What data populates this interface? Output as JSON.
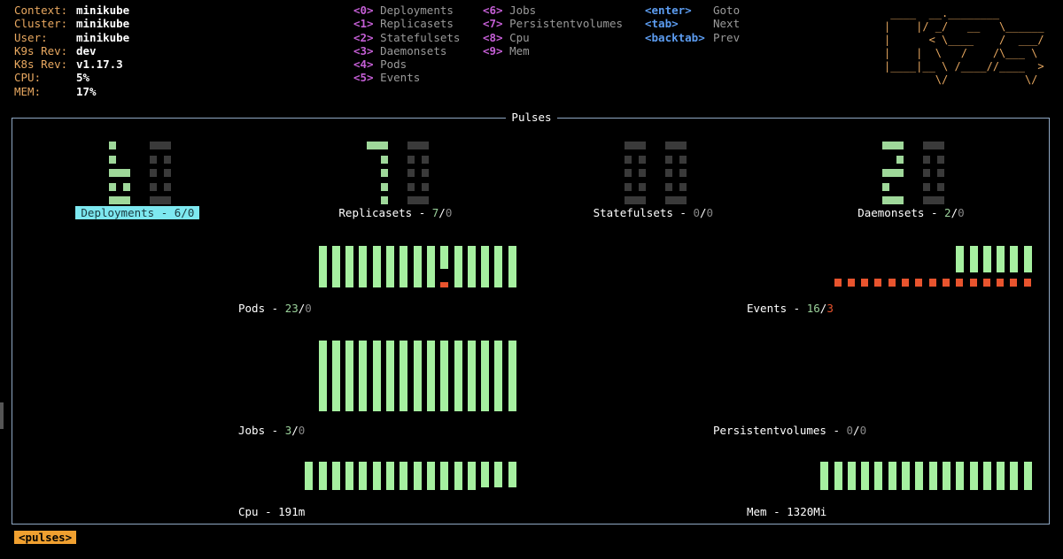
{
  "cluster_info": [
    {
      "label": "Context:",
      "value": "minikube"
    },
    {
      "label": "Cluster:",
      "value": "minikube"
    },
    {
      "label": "User:",
      "value": "minikube"
    },
    {
      "label": "K9s Rev:",
      "value": "dev"
    },
    {
      "label": "K8s Rev:",
      "value": "v1.17.3"
    },
    {
      "label": "CPU:",
      "value": "5%"
    },
    {
      "label": "MEM:",
      "value": "17%"
    }
  ],
  "menu_col1": [
    {
      "key": "<0>",
      "label": "Deployments"
    },
    {
      "key": "<1>",
      "label": "Replicasets"
    },
    {
      "key": "<2>",
      "label": "Statefulsets"
    },
    {
      "key": "<3>",
      "label": "Daemonsets"
    },
    {
      "key": "<4>",
      "label": "Pods"
    },
    {
      "key": "<5>",
      "label": "Events"
    }
  ],
  "menu_col2": [
    {
      "key": "<6>",
      "label": "Jobs"
    },
    {
      "key": "<7>",
      "label": "Persistentvolumes"
    },
    {
      "key": "<8>",
      "label": "Cpu"
    },
    {
      "key": "<9>",
      "label": "Mem"
    }
  ],
  "menu_col3": [
    {
      "key": "<enter>",
      "label": "Goto"
    },
    {
      "key": "<tab>",
      "label": "Next"
    },
    {
      "key": "<backtab>",
      "label": "Prev"
    }
  ],
  "logo": " ____  __.________       \n|    |/ _/   __   \\______\n|      < \\____    /  ___/\n|    |  \\   /    /\\___ \\ \n|____|__ \\ /____//____  >\n        \\/            \\/ ",
  "frame_title": "Pulses",
  "gauges": [
    {
      "name": "Deployments",
      "ok": "6",
      "err": "0",
      "selected": true
    },
    {
      "name": "Replicasets",
      "ok": "7",
      "err": "0",
      "selected": false
    },
    {
      "name": "Statefulsets",
      "ok": "0",
      "err": "0",
      "selected": false
    },
    {
      "name": "Daemonsets",
      "ok": "2",
      "err": "0",
      "selected": false
    }
  ],
  "pulses": [
    {
      "name": "Pods",
      "ok": "23",
      "err": "0",
      "series_ok": [
        1,
        1,
        1,
        1,
        1,
        1,
        1,
        1,
        1,
        0.55,
        1,
        1,
        1,
        1,
        1
      ],
      "series_err": [
        0,
        0,
        0,
        0,
        0,
        0,
        0,
        0,
        0,
        0.15,
        0,
        0,
        0,
        0,
        0
      ]
    },
    {
      "name": "Events",
      "ok": "16",
      "err": "3",
      "series_ok": [
        0,
        0,
        0,
        0,
        0,
        0,
        0,
        0,
        0,
        1,
        1,
        1,
        1,
        1,
        1
      ],
      "series_err": [
        1,
        1,
        1,
        1,
        1,
        1,
        1,
        1,
        1,
        1,
        1,
        1,
        1,
        1,
        1
      ]
    },
    {
      "name": "Jobs",
      "ok": "3",
      "err": "0",
      "series_ok": [
        1,
        1,
        1,
        1,
        1,
        1,
        1,
        1,
        1,
        1,
        1,
        1,
        1,
        1,
        1
      ],
      "series_err": []
    },
    {
      "name": "Persistentvolumes",
      "ok": "0",
      "err": "0",
      "series_ok": [],
      "series_err": []
    },
    {
      "name": "Cpu",
      "value": "191m",
      "series_ok": [
        1,
        1,
        1,
        1,
        1,
        1,
        1,
        1,
        1,
        1,
        1,
        1,
        1,
        0.9,
        0.9,
        0.9
      ],
      "series_err": []
    },
    {
      "name": "Mem",
      "value": "1320Mi",
      "series_ok": [
        1,
        1,
        1,
        1,
        1,
        1,
        1,
        1,
        1,
        1,
        1,
        1,
        1,
        1,
        1,
        1
      ],
      "series_err": []
    }
  ],
  "breadcrumb": "<pulses>",
  "colors": {
    "ok": "#a6f0a0",
    "err": "#e8542e",
    "accent": "#e8a860",
    "selected": "#7de8f0"
  }
}
